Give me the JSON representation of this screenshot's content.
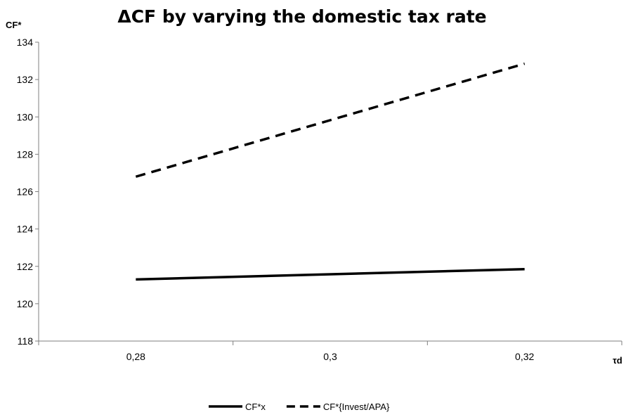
{
  "chart_data": {
    "type": "line",
    "title": "ΔCF by varying the domestic tax rate",
    "ylabel": "CF*",
    "xlabel": "τd",
    "categories": [
      "0,28",
      "0,3",
      "0,32"
    ],
    "x": [
      0.28,
      0.32
    ],
    "ylim": [
      118,
      134
    ],
    "yticks": [
      118,
      120,
      122,
      124,
      126,
      128,
      130,
      132,
      134
    ],
    "grid": false,
    "legend_position": "bottom",
    "series": [
      {
        "name": "CF*x",
        "style": "solid",
        "color": "#000000",
        "values": [
          121.3,
          121.85
        ]
      },
      {
        "name": "CF*{Invest/APA}",
        "style": "dashed",
        "color": "#000000",
        "values": [
          126.8,
          132.85
        ]
      }
    ]
  }
}
